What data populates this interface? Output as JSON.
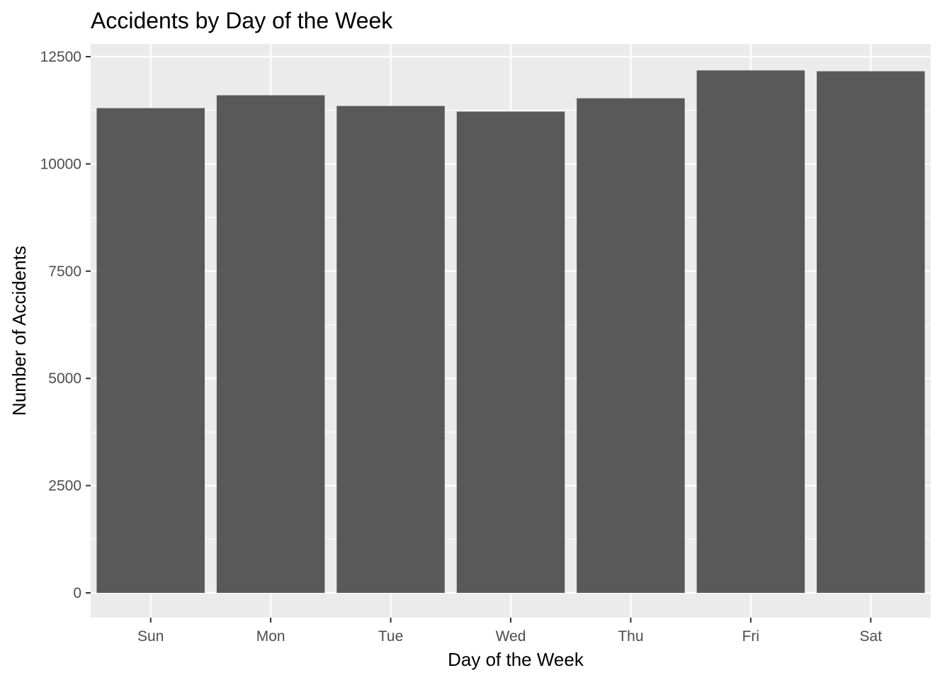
{
  "chart_data": {
    "type": "bar",
    "title": "Accidents by Day of the Week",
    "xlabel": "Day of the Week",
    "ylabel": "Number of Accidents",
    "categories": [
      "Sun",
      "Mon",
      "Tue",
      "Wed",
      "Thu",
      "Fri",
      "Sat"
    ],
    "values": [
      11300,
      11600,
      11350,
      11220,
      11530,
      12180,
      12160
    ],
    "ylim": [
      0,
      13000
    ],
    "yticks": [
      0,
      2500,
      5000,
      7500,
      10000,
      12500
    ],
    "ytick_labels": [
      "0",
      "2500",
      "5000",
      "7500",
      "10000",
      "12500"
    ],
    "grid": true,
    "colors": {
      "panel": "#ebebeb",
      "bar": "#595959",
      "grid": "#ffffff"
    }
  }
}
